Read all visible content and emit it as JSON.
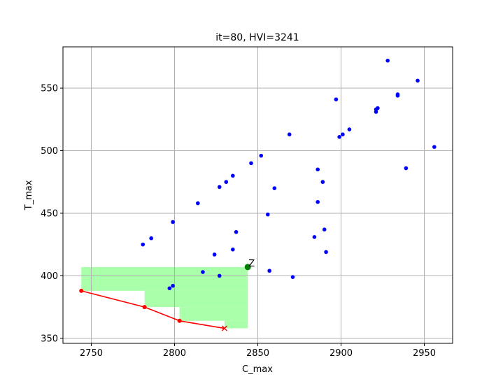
{
  "chart_data": {
    "type": "scatter",
    "title": "it=80, HVI=3241",
    "xlabel": "C_max",
    "ylabel": "T_max",
    "xlim": [
      2733,
      2967
    ],
    "ylim": [
      346,
      583
    ],
    "xticks": [
      2750,
      2800,
      2850,
      2900,
      2950
    ],
    "yticks": [
      350,
      400,
      450,
      500,
      550
    ],
    "grid": true,
    "colors": {
      "points": "#0000ff",
      "front": "#ff0000",
      "reference": "#008000",
      "dominated_region": "#aaffaa"
    },
    "points": [
      {
        "x": 2928,
        "y": 572
      },
      {
        "x": 2946,
        "y": 556
      },
      {
        "x": 2897,
        "y": 541
      },
      {
        "x": 2934,
        "y": 545
      },
      {
        "x": 2934,
        "y": 544
      },
      {
        "x": 2922,
        "y": 534
      },
      {
        "x": 2921,
        "y": 531
      },
      {
        "x": 2921,
        "y": 533
      },
      {
        "x": 2905,
        "y": 517
      },
      {
        "x": 2901,
        "y": 513
      },
      {
        "x": 2899,
        "y": 511
      },
      {
        "x": 2869,
        "y": 513
      },
      {
        "x": 2956,
        "y": 503
      },
      {
        "x": 2852,
        "y": 496
      },
      {
        "x": 2846,
        "y": 490
      },
      {
        "x": 2939,
        "y": 486
      },
      {
        "x": 2886,
        "y": 485
      },
      {
        "x": 2835,
        "y": 480
      },
      {
        "x": 2831,
        "y": 475
      },
      {
        "x": 2827,
        "y": 471
      },
      {
        "x": 2889,
        "y": 475
      },
      {
        "x": 2860,
        "y": 470
      },
      {
        "x": 2814,
        "y": 458
      },
      {
        "x": 2886,
        "y": 459
      },
      {
        "x": 2856,
        "y": 449
      },
      {
        "x": 2799,
        "y": 443
      },
      {
        "x": 2890,
        "y": 437
      },
      {
        "x": 2837,
        "y": 435
      },
      {
        "x": 2884,
        "y": 431
      },
      {
        "x": 2786,
        "y": 430
      },
      {
        "x": 2781,
        "y": 425
      },
      {
        "x": 2835,
        "y": 421
      },
      {
        "x": 2891,
        "y": 419
      },
      {
        "x": 2824,
        "y": 417
      },
      {
        "x": 2817,
        "y": 403
      },
      {
        "x": 2857,
        "y": 404
      },
      {
        "x": 2827,
        "y": 400
      },
      {
        "x": 2871,
        "y": 399
      },
      {
        "x": 2799,
        "y": 392
      },
      {
        "x": 2797,
        "y": 390
      }
    ],
    "pareto_front": [
      {
        "x": 2744,
        "y": 388
      },
      {
        "x": 2782,
        "y": 375
      },
      {
        "x": 2803,
        "y": 364
      },
      {
        "x": 2830,
        "y": 358
      }
    ],
    "reference_point": {
      "x": 2844,
      "y": 407,
      "label": "Z"
    }
  }
}
